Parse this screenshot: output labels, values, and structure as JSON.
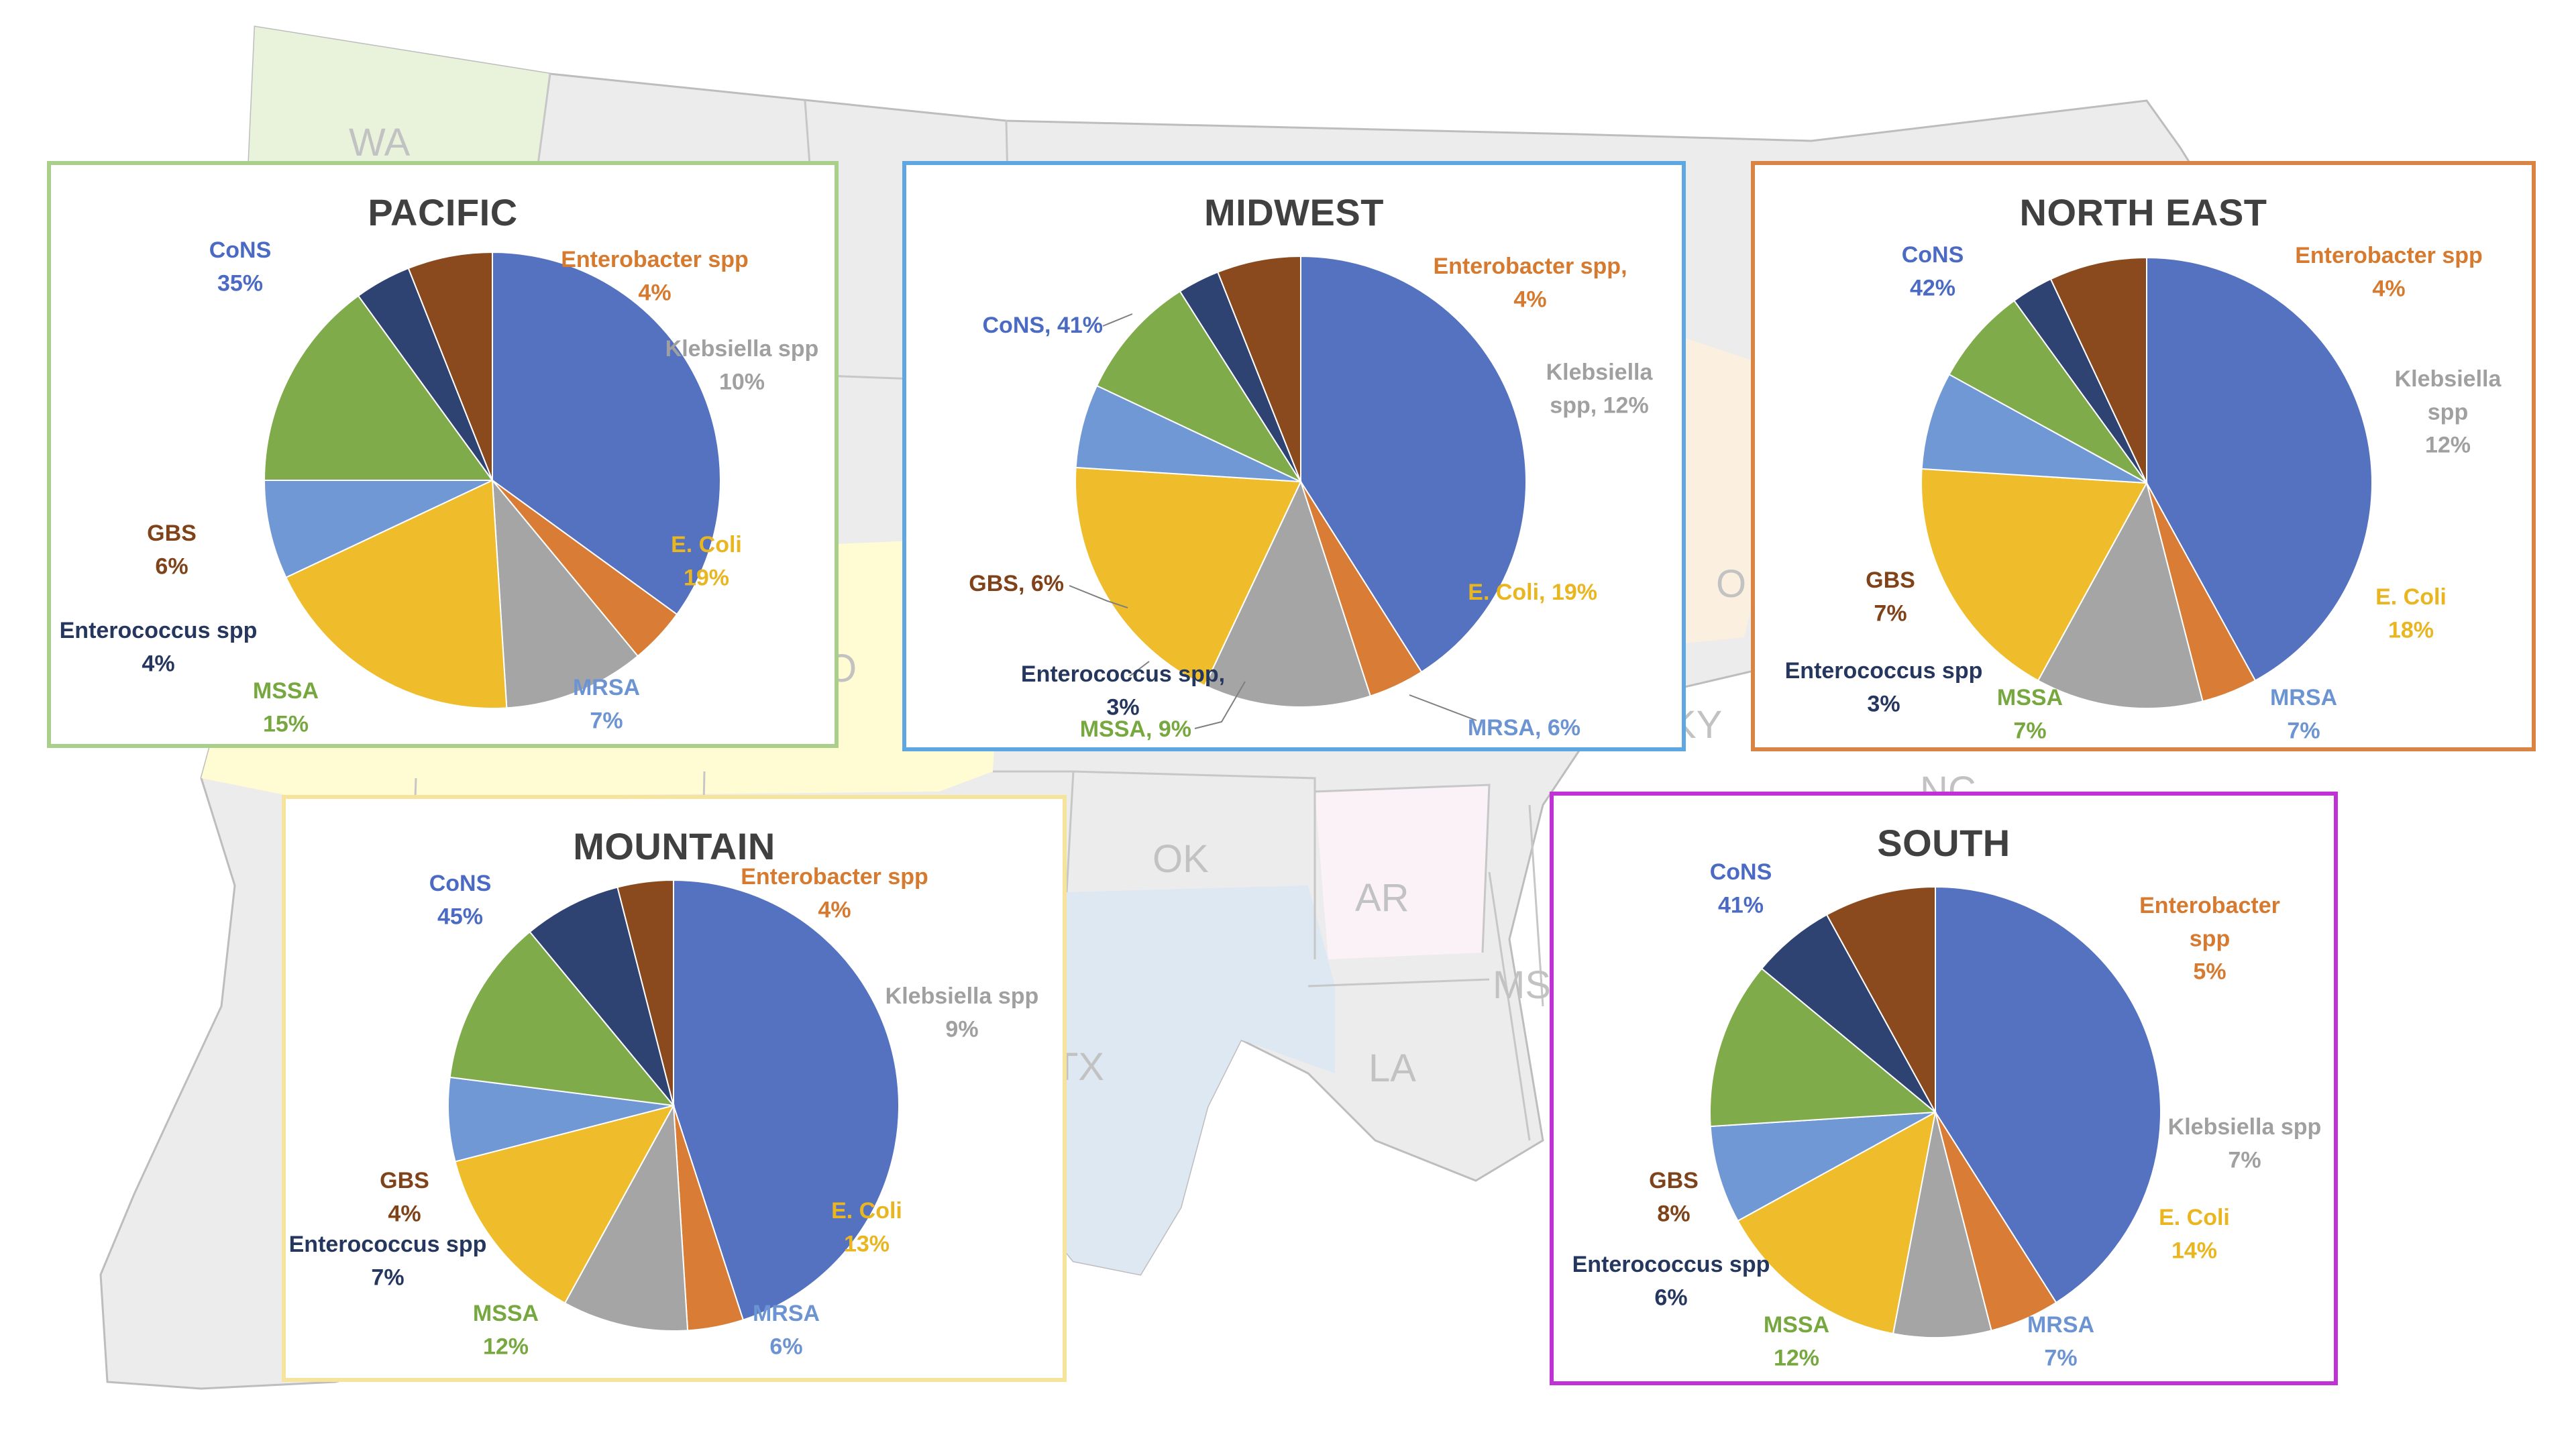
{
  "map": {
    "state_labels": [
      "WA",
      "O",
      "OK",
      "AR",
      "MS",
      "LA",
      "TX",
      "KY",
      "NC",
      "O"
    ],
    "colors": {
      "land": "#ececec",
      "border": "#bdbdbd",
      "pacific": "#e9f3dc",
      "mountain": "#fffbd3",
      "texas": "#dde8f2",
      "arkansas": "#fbf2f7",
      "east": "#fbf0e0"
    }
  },
  "chart_data": [
    {
      "type": "pie",
      "title": "PACIFIC",
      "border_color": "#a9cf8b",
      "slices": [
        {
          "name": "CoNS",
          "value": 35,
          "pct": "35%"
        },
        {
          "name": "Enterobacter spp",
          "value": 4,
          "pct": "4%"
        },
        {
          "name": "Klebsiella spp",
          "value": 10,
          "pct": "10%"
        },
        {
          "name": "E. Coli",
          "value": 19,
          "pct": "19%"
        },
        {
          "name": "MRSA",
          "value": 7,
          "pct": "7%"
        },
        {
          "name": "MSSA",
          "value": 15,
          "pct": "15%"
        },
        {
          "name": "Enterococcus spp",
          "value": 4,
          "pct": "4%"
        },
        {
          "name": "GBS",
          "value": 6,
          "pct": "6%"
        }
      ]
    },
    {
      "type": "pie",
      "title": "MIDWEST",
      "border_color": "#5ea7e3",
      "slices": [
        {
          "name": "CoNS",
          "value": 41,
          "pct": "41%"
        },
        {
          "name": "Enterobacter spp",
          "value": 4,
          "pct": "4%"
        },
        {
          "name": "Klebsiella spp",
          "value": 12,
          "pct": "12%"
        },
        {
          "name": "E. Coli",
          "value": 19,
          "pct": "19%"
        },
        {
          "name": "MRSA",
          "value": 6,
          "pct": "6%"
        },
        {
          "name": "MSSA",
          "value": 9,
          "pct": "9%"
        },
        {
          "name": "Enterococcus spp",
          "value": 3,
          "pct": "3%"
        },
        {
          "name": "GBS",
          "value": 6,
          "pct": "6%"
        }
      ]
    },
    {
      "type": "pie",
      "title": "NORTH EAST",
      "border_color": "#d98442",
      "slices": [
        {
          "name": "CoNS",
          "value": 42,
          "pct": "42%"
        },
        {
          "name": "Enterobacter spp",
          "value": 4,
          "pct": "4%"
        },
        {
          "name": "Klebsiella spp",
          "value": 12,
          "pct": "12%"
        },
        {
          "name": "E. Coli",
          "value": 18,
          "pct": "18%"
        },
        {
          "name": "MRSA",
          "value": 7,
          "pct": "7%"
        },
        {
          "name": "MSSA",
          "value": 7,
          "pct": "7%"
        },
        {
          "name": "Enterococcus spp",
          "value": 3,
          "pct": "3%"
        },
        {
          "name": "GBS",
          "value": 7,
          "pct": "7%"
        }
      ]
    },
    {
      "type": "pie",
      "title": "MOUNTAIN",
      "border_color": "#f6e49c",
      "slices": [
        {
          "name": "CoNS",
          "value": 45,
          "pct": "45%"
        },
        {
          "name": "Enterobacter spp",
          "value": 4,
          "pct": "4%"
        },
        {
          "name": "Klebsiella spp",
          "value": 9,
          "pct": "9%"
        },
        {
          "name": "E. Coli",
          "value": 13,
          "pct": "13%"
        },
        {
          "name": "MRSA",
          "value": 6,
          "pct": "6%"
        },
        {
          "name": "MSSA",
          "value": 12,
          "pct": "12%"
        },
        {
          "name": "Enterococcus spp",
          "value": 7,
          "pct": "7%"
        },
        {
          "name": "GBS",
          "value": 4,
          "pct": "4%"
        }
      ]
    },
    {
      "type": "pie",
      "title": "SOUTH",
      "border_color": "#c032d6",
      "slices": [
        {
          "name": "CoNS",
          "value": 41,
          "pct": "41%"
        },
        {
          "name": "Enterobacter spp",
          "value": 5,
          "pct": "5%"
        },
        {
          "name": "Klebsiella spp",
          "value": 7,
          "pct": "7%"
        },
        {
          "name": "E. Coli",
          "value": 14,
          "pct": "14%"
        },
        {
          "name": "MRSA",
          "value": 7,
          "pct": "7%"
        },
        {
          "name": "MSSA",
          "value": 12,
          "pct": "12%"
        },
        {
          "name": "Enterococcus spp",
          "value": 6,
          "pct": "6%"
        },
        {
          "name": "GBS",
          "value": 8,
          "pct": "8%"
        }
      ]
    }
  ],
  "slice_colors": {
    "CoNS": "#5572c1",
    "Enterobacter spp": "#d97c35",
    "Klebsiella spp": "#a5a5a5",
    "E. Coli": "#efbd2c",
    "MRSA": "#6f98d4",
    "MSSA": "#7fab4b",
    "Enterococcus spp": "#2f4373",
    "GBS": "#8a4a1d"
  },
  "label_colors": {
    "CoNS": "#4a6ac4",
    "Enterobacter spp": "#d67a30",
    "Klebsiella spp": "#a0a0a0",
    "E. Coli": "#e9b620",
    "MRSA": "#6d94d2",
    "MSSA": "#76a83f",
    "Enterococcus spp": "#26375f",
    "GBS": "#7f4219"
  },
  "label_lines": {
    "MIDWEST": [
      [
        "CoNS, 41%"
      ],
      [
        "Enterobacter spp,",
        "4%"
      ],
      [
        "Klebsiella",
        "spp, 12%"
      ],
      [
        "E. Coli, 19%"
      ],
      [
        "MRSA, 6%"
      ],
      [
        "MSSA, 9%"
      ],
      [
        "Enterococcus spp,",
        "3%"
      ],
      [
        "GBS, 6%"
      ]
    ],
    "NORTH EAST": [
      [
        "CoNS",
        "42%"
      ],
      [
        "Enterobacter spp",
        "4%"
      ],
      [
        "Klebsiella",
        "spp",
        "12%"
      ],
      [
        "E. Coli",
        "18%"
      ],
      [
        "MRSA",
        "7%"
      ],
      [
        "MSSA",
        "7%"
      ],
      [
        "Enterococcus spp",
        "3%"
      ],
      [
        "GBS",
        "7%"
      ]
    ],
    "SOUTH": [
      [
        "CoNS",
        "41%"
      ],
      [
        "Enterobacter",
        "spp",
        "5%"
      ],
      [
        "Klebsiella spp",
        "7%"
      ],
      [
        "E. Coli",
        "14%"
      ],
      [
        "MRSA",
        "7%"
      ],
      [
        "MSSA",
        "12%"
      ],
      [
        "Enterococcus spp",
        "6%"
      ],
      [
        "GBS",
        "8%"
      ]
    ]
  }
}
